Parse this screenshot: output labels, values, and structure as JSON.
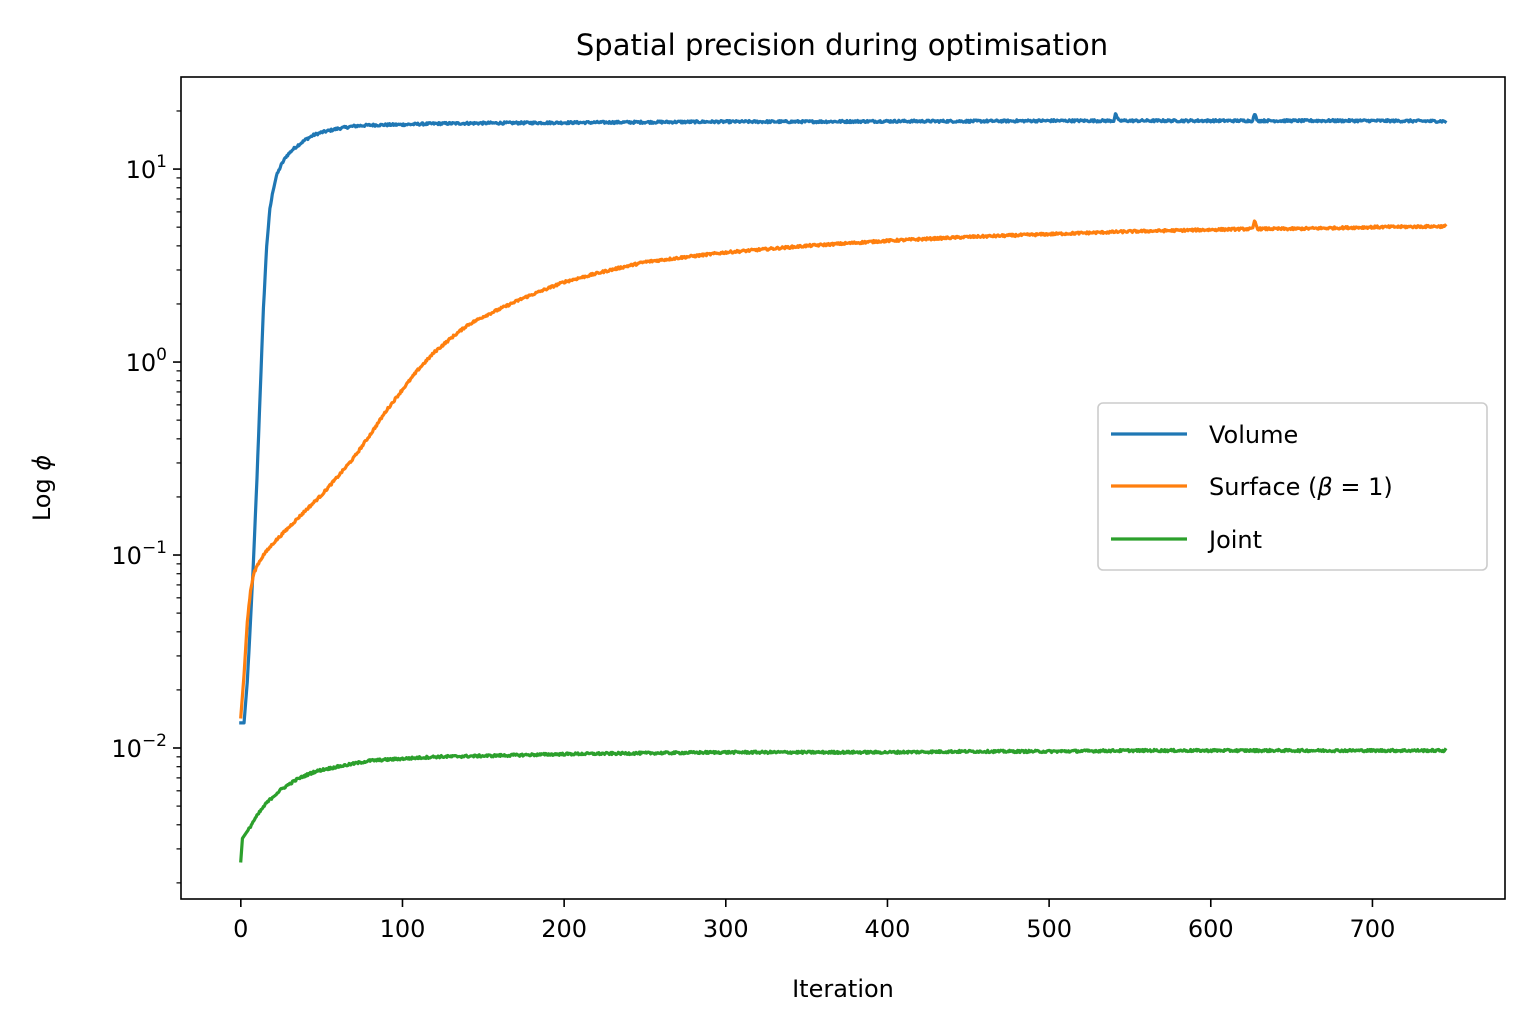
{
  "chart_data": {
    "type": "line",
    "title": "Spatial precision during optimisation",
    "xlabel": "Iteration",
    "ylabel_prefix": "Log ",
    "ylabel_symbol": "ϕ",
    "xlim": [
      -37,
      782
    ],
    "ylim": [
      0.00165,
      30
    ],
    "yscale": "log",
    "grid": false,
    "legend_position": "center-right",
    "x_ticks": [
      0,
      100,
      200,
      300,
      400,
      500,
      600,
      700
    ],
    "y_ticks": [
      {
        "value": 0.01,
        "base": "10",
        "exp": "−2"
      },
      {
        "value": 0.1,
        "base": "10",
        "exp": "−1"
      },
      {
        "value": 1,
        "base": "10",
        "exp": "0"
      },
      {
        "value": 10,
        "base": "10",
        "exp": "1"
      }
    ],
    "series": [
      {
        "name": "Volume",
        "legend_label": "Volume",
        "color": "#1f77b4",
        "x": [
          0,
          2,
          4,
          6,
          8,
          10,
          12,
          14,
          16,
          18,
          20,
          22,
          25,
          28,
          32,
          36,
          40,
          45,
          50,
          60,
          70,
          80,
          100,
          120,
          150,
          200,
          250,
          300,
          350,
          400,
          450,
          500,
          540,
          541,
          543,
          550,
          600,
          626,
          627,
          629,
          650,
          700,
          745
        ],
        "y": [
          0.0135,
          0.0135,
          0.022,
          0.045,
          0.1,
          0.25,
          0.7,
          1.9,
          4.0,
          6.2,
          7.8,
          9.2,
          10.5,
          11.6,
          12.6,
          13.4,
          14.2,
          15.0,
          15.5,
          16.2,
          16.7,
          16.9,
          17.0,
          17.2,
          17.3,
          17.4,
          17.5,
          17.6,
          17.6,
          17.7,
          17.7,
          17.8,
          17.8,
          19.3,
          17.8,
          17.8,
          17.8,
          17.8,
          19.3,
          17.8,
          17.8,
          17.8,
          17.7
        ]
      },
      {
        "name": "Surface (β = 1)",
        "legend_prefix": "Surface (",
        "legend_symbol": "β",
        "legend_suffix": " = 1)",
        "color": "#ff7f0e",
        "x": [
          0,
          2,
          4,
          6,
          8,
          10,
          14,
          20,
          30,
          40,
          50,
          60,
          70,
          80,
          90,
          100,
          110,
          120,
          130,
          140,
          150,
          175,
          200,
          225,
          250,
          275,
          300,
          350,
          400,
          450,
          500,
          550,
          600,
          626,
          627,
          629,
          650,
          700,
          745
        ],
        "y": [
          0.0145,
          0.024,
          0.045,
          0.065,
          0.08,
          0.088,
          0.1,
          0.115,
          0.14,
          0.17,
          0.205,
          0.255,
          0.32,
          0.42,
          0.56,
          0.72,
          0.92,
          1.13,
          1.33,
          1.55,
          1.72,
          2.15,
          2.6,
          2.95,
          3.3,
          3.5,
          3.7,
          4.0,
          4.25,
          4.45,
          4.6,
          4.75,
          4.85,
          4.9,
          5.4,
          4.9,
          4.9,
          5.0,
          5.05
        ]
      },
      {
        "name": "Joint",
        "legend_label": "Joint",
        "color": "#2ca02c",
        "x": [
          0,
          1,
          2,
          3,
          5,
          8,
          12,
          16,
          20,
          25,
          30,
          35,
          40,
          45,
          50,
          60,
          70,
          80,
          90,
          100,
          120,
          150,
          200,
          250,
          300,
          350,
          400,
          450,
          500,
          550,
          600,
          650,
          700,
          745
        ],
        "y": [
          0.0026,
          0.0034,
          0.0035,
          0.0036,
          0.0038,
          0.0042,
          0.0047,
          0.0052,
          0.0056,
          0.0061,
          0.0065,
          0.0069,
          0.0072,
          0.0075,
          0.0077,
          0.008,
          0.0083,
          0.0086,
          0.0087,
          0.0088,
          0.009,
          0.0091,
          0.0093,
          0.0094,
          0.0095,
          0.0095,
          0.0095,
          0.0096,
          0.0096,
          0.0097,
          0.0097,
          0.0097,
          0.0097,
          0.0097
        ]
      }
    ]
  }
}
